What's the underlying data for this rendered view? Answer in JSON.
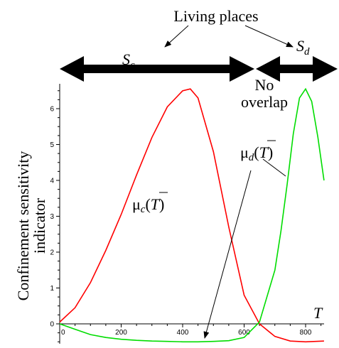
{
  "chart_data": {
    "type": "line",
    "xlabel": "T",
    "ylabel": "Confinement sensitivity indicator",
    "xlim": [
      0,
      860
    ],
    "ylim": [
      -0.7,
      6.7
    ],
    "x_ticks": [
      "0",
      "200",
      "400",
      "600",
      "800"
    ],
    "y_ticks": [
      "0",
      "1",
      "2",
      "3",
      "4",
      "5",
      "6"
    ],
    "grid": false,
    "colors": {
      "mu_c": "#ff0000",
      "mu_d": "#00dd00"
    },
    "series": [
      {
        "key": "mu_c",
        "x": [
          0,
          50,
          100,
          150,
          200,
          250,
          300,
          350,
          400,
          425,
          450,
          500,
          550,
          600,
          650,
          700,
          750,
          800,
          860
        ],
        "y": [
          0.05,
          0.45,
          1.15,
          2.05,
          3.05,
          4.15,
          5.2,
          6.05,
          6.5,
          6.55,
          6.3,
          4.8,
          2.7,
          0.8,
          0.0,
          -0.35,
          -0.48,
          -0.5,
          -0.48
        ]
      },
      {
        "key": "mu_d",
        "x": [
          0,
          50,
          100,
          150,
          200,
          250,
          300,
          350,
          400,
          450,
          500,
          550,
          600,
          650,
          700,
          720,
          740,
          760,
          780,
          800,
          820,
          840,
          860
        ],
        "y": [
          0.0,
          -0.15,
          -0.3,
          -0.38,
          -0.43,
          -0.46,
          -0.48,
          -0.49,
          -0.5,
          -0.5,
          -0.49,
          -0.47,
          -0.38,
          0.05,
          1.5,
          2.6,
          3.9,
          5.3,
          6.3,
          6.55,
          6.2,
          5.2,
          4.0
        ]
      }
    ],
    "annotations": {
      "living_places": "Living places",
      "no_overlap_line1": "No",
      "no_overlap_line2": "overlap",
      "region_c": {
        "main": "S",
        "sub": "c"
      },
      "region_d": {
        "main": "S",
        "sub": "d"
      },
      "mu_c_label": {
        "mu": "μ",
        "sub": "c",
        "open": "(",
        "T": "T",
        "close": ")"
      },
      "mu_d_label": {
        "mu": "μ",
        "sub": "d",
        "open": "(",
        "T": "T",
        "close": ")"
      },
      "ylabel_line1": "Confinement sensitivity",
      "ylabel_line2": "indicator"
    }
  }
}
